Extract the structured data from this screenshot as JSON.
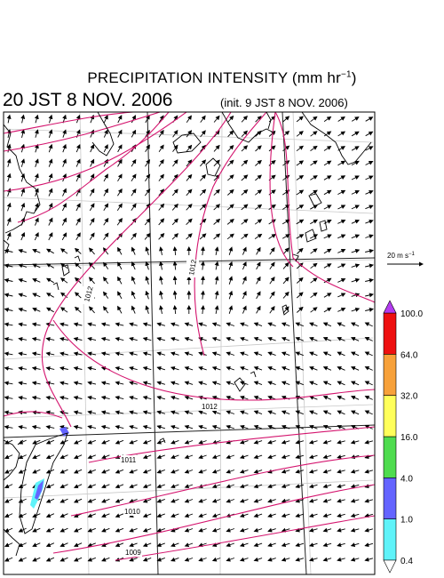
{
  "header": {
    "title_main": "PRECIPITATION INTENSITY (mm hr",
    "title_sup": "−1",
    "title_end": ")",
    "valid_time": "20 JST 8 NOV. 2006",
    "init_time": "(init. 9 JST 8 NOV. 2006)"
  },
  "wind_reference": {
    "label": "20 m s",
    "sup": "−1"
  },
  "colorbar": {
    "colors": [
      "#ffffff",
      "#5ff3f9",
      "#6464ff",
      "#4fdc4f",
      "#ffff5a",
      "#f7a13a",
      "#ee1010",
      "#b43cf0"
    ],
    "labels": [
      "0.4",
      "1.0",
      "4.0",
      "16.0",
      "32.0",
      "64.0",
      "100.0"
    ]
  },
  "isobars": {
    "color": "#d4146e",
    "labels": [
      "1012",
      "1012",
      "1012",
      "1011",
      "1010",
      "1009"
    ]
  },
  "map": {
    "coastline_color": "#000000",
    "grid_color": "#c8c8c8",
    "arrow_color": "#000000"
  }
}
